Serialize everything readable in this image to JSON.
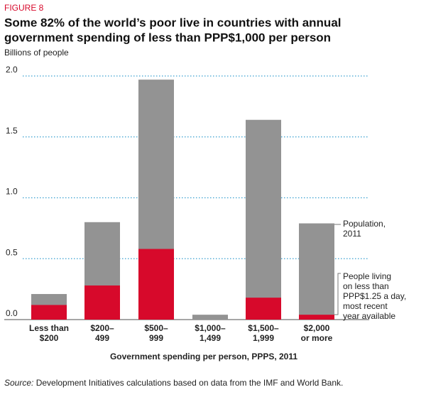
{
  "chart_data": {
    "type": "bar",
    "figure_label": "FIGURE 8",
    "title": [
      "Some 82% of the world’s poor live in countries with annual",
      "government spending of less than PPP$1,000 per person"
    ],
    "y_label": "Billions of people",
    "x_label": "Government spending per person, PPPS, 2011",
    "categories": [
      [
        "Less than",
        "$200"
      ],
      [
        "$200–",
        "499"
      ],
      [
        "$500–",
        "999"
      ],
      [
        "$1,000–",
        "1,499"
      ],
      [
        "$1,500–",
        "1,999"
      ],
      [
        "$2,000",
        "or more"
      ]
    ],
    "series": [
      {
        "name": [
          "Population,",
          "2011"
        ],
        "color": "#939393",
        "values": [
          0.21,
          0.8,
          1.97,
          0.04,
          1.64,
          0.79
        ]
      },
      {
        "name": [
          "People living",
          "on less than",
          "PPP$1.25 a day,",
          "most recent",
          "year available"
        ],
        "color": "#d7092b",
        "values": [
          0.12,
          0.28,
          0.58,
          0,
          0.18,
          0.04
        ]
      }
    ],
    "ylim": [
      0,
      2
    ],
    "yticks": [
      {
        "value": 0,
        "label": "0.0"
      },
      0.5,
      {
        "value": 1,
        "label": "1.0"
      },
      1.5,
      {
        "value": 2,
        "label": "2.0"
      }
    ],
    "grid": true,
    "source": {
      "label": "Source:",
      "text": " Development Initiatives calculations based on data from the IMF and World Bank."
    }
  }
}
